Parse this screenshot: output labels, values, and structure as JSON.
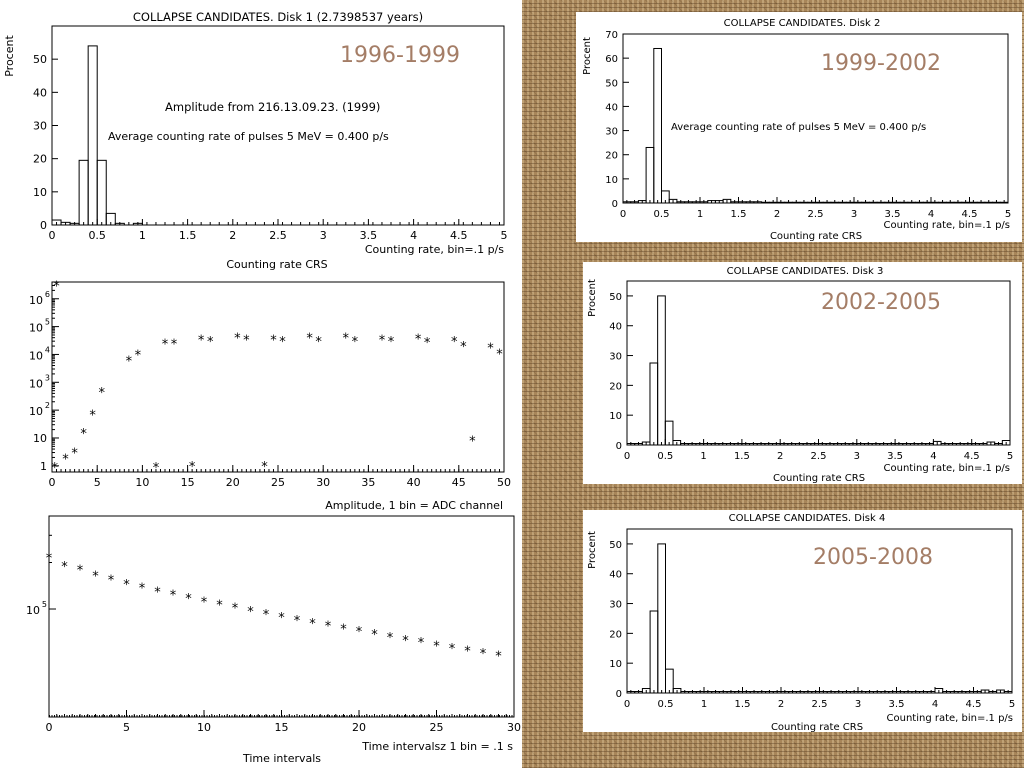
{
  "chart_data": [
    {
      "id": "disk1",
      "type": "bar",
      "title": "COLLAPSE CANDIDATES. Disk 1 (2.7398537 years)",
      "period_label": "1996-1999",
      "ylabel": "Procent",
      "xlabel": "Counting rate, bin=.1 p/s",
      "xlabel2": "Counting rate CRS",
      "annotations": [
        "Amplitude from  216.13.09.23. (1999)",
        "Average counting rate of pulses  5 MeV = 0.400 p/s"
      ],
      "xlim": [
        0,
        5
      ],
      "ylim": [
        0,
        60
      ],
      "xticks": [
        0,
        0.5,
        1,
        1.5,
        2,
        2.5,
        3,
        3.5,
        4,
        4.5,
        5
      ],
      "xtick_labels": [
        "0",
        "0.5",
        "1",
        "1.5",
        "2",
        "2.5",
        "3",
        "3.5",
        "4",
        "4.5",
        "5"
      ],
      "yticks": [
        0,
        10,
        20,
        30,
        40,
        50
      ],
      "bin_width": 0.1,
      "values": [
        1.5,
        0.8,
        0.5,
        19.5,
        54,
        19.5,
        3.5,
        0.5,
        0,
        0.5,
        0,
        0,
        0,
        0,
        0,
        0,
        0,
        0,
        0,
        0,
        0,
        0,
        0,
        0,
        0,
        0,
        0,
        0,
        0,
        0,
        0,
        0,
        0,
        0,
        0,
        0,
        0,
        0,
        0,
        0,
        0,
        0,
        0,
        0,
        0,
        0,
        0,
        0,
        0,
        0
      ]
    },
    {
      "id": "amplitude",
      "type": "scatter",
      "xlabel": "Amplitude, 1 bin = ADC channel",
      "xlim": [
        0,
        50
      ],
      "ylog": true,
      "ylim": [
        0.6,
        4000000
      ],
      "xticks": [
        0,
        5,
        10,
        15,
        20,
        25,
        30,
        35,
        40,
        45,
        50
      ],
      "xtick_labels": [
        "0",
        "5",
        "10",
        "15",
        "20",
        "25",
        "30",
        "35",
        "40",
        "45",
        "50"
      ],
      "yticks": [
        1,
        10,
        100,
        1000,
        10000,
        100000,
        1000000
      ],
      "ytick_base": [
        "1",
        "10",
        "10",
        "10",
        "10",
        "10",
        "10"
      ],
      "ytick_exp": [
        "",
        "",
        "2",
        "3",
        "4",
        "5",
        "6"
      ],
      "x": [
        0.5,
        1.5,
        2.5,
        3.5,
        4.5,
        5.5,
        8.5,
        9.5,
        12.5,
        13.5,
        16.5,
        17.5,
        20.5,
        21.5,
        24.5,
        25.5,
        28.5,
        29.5,
        32.5,
        33.5,
        36.5,
        37.5,
        40.5,
        41.5,
        44.5,
        45.5,
        46.5,
        48.5,
        49.5,
        0.3,
        11.5,
        15.5,
        23.5
      ],
      "y": [
        3000000,
        1.8,
        3,
        15,
        70,
        450,
        6000,
        10000,
        25000,
        25000,
        35000,
        30000,
        40000,
        35000,
        35000,
        30000,
        40000,
        30000,
        40000,
        30000,
        35000,
        30000,
        38000,
        28000,
        30000,
        20000,
        8,
        18000,
        11000,
        0.9,
        0.9,
        1,
        1
      ]
    },
    {
      "id": "time-intervals",
      "type": "scatter",
      "xlabel": "Time intervalsz 1 bin = .1 s",
      "xlabel2": "Time intervals",
      "xlim": [
        0,
        30
      ],
      "ylog": true,
      "ylim": [
        20000,
        400000
      ],
      "xticks": [
        0,
        5,
        10,
        15,
        20,
        25,
        30
      ],
      "xtick_labels": [
        "0",
        "5",
        "10",
        "15",
        "20",
        "25",
        "30"
      ],
      "yticks": [
        100000
      ],
      "ytick_base": [
        "10"
      ],
      "ytick_exp": [
        "5"
      ],
      "x": [
        0,
        1,
        2,
        3,
        4,
        5,
        6,
        7,
        8,
        9,
        10,
        11,
        12,
        13,
        14,
        15,
        16,
        17,
        18,
        19,
        20,
        21,
        22,
        23,
        24,
        25,
        26,
        27,
        28,
        29
      ],
      "y": [
        215000,
        190000,
        180000,
        165000,
        155000,
        145000,
        138000,
        130000,
        124000,
        118000,
        112000,
        107000,
        102000,
        97000,
        93000,
        89000,
        85000,
        81000,
        78000,
        75000,
        72000,
        69000,
        66000,
        63000,
        61000,
        58000,
        56000,
        54000,
        52000,
        50000
      ]
    },
    {
      "id": "disk2",
      "type": "bar",
      "title": "COLLAPSE CANDIDATES. Disk 2",
      "period_label": "1999-2002",
      "ylabel": "Procent",
      "xlabel": "Counting rate, bin=.1 p/s",
      "xlabel2": "Counting rate CRS",
      "annotations": [
        "Average counting rate of pulses  5 MeV = 0.400 p/s"
      ],
      "xlim": [
        0,
        5
      ],
      "ylim": [
        0,
        70
      ],
      "xticks": [
        0,
        0.5,
        1,
        1.5,
        2,
        2.5,
        3,
        3.5,
        4,
        4.5,
        5
      ],
      "xtick_labels": [
        "0",
        "0.5",
        "1",
        "1.5",
        "2",
        "2.5",
        "3",
        "3.5",
        "4",
        "4.5",
        "5"
      ],
      "yticks": [
        0,
        10,
        20,
        30,
        40,
        50,
        60,
        70
      ],
      "bin_width": 0.1,
      "values": [
        0.5,
        0.5,
        1,
        23,
        64,
        5,
        1.5,
        0.5,
        0.5,
        0.5,
        0.5,
        1,
        1,
        1.5,
        0.5,
        0.5,
        0.5,
        0.5,
        0.3,
        0.3,
        0.3,
        0.3,
        0.3,
        0.3,
        0.3,
        0.3,
        0.3,
        0.3,
        0.3,
        0.3,
        0.3,
        0.3,
        0.3,
        0.3,
        0.3,
        0.3,
        0.3,
        0.3,
        0.3,
        0.3,
        0.3,
        0.3,
        0.3,
        0.3,
        0.3,
        0.3,
        0.3,
        0.3,
        0.3,
        0.3
      ]
    },
    {
      "id": "disk3",
      "type": "bar",
      "title": "COLLAPSE CANDIDATES. Disk 3",
      "period_label": "2002-2005",
      "ylabel": "Procent",
      "xlabel": "Counting rate, bin=.1 p/s",
      "xlabel2": "Counting rate CRS",
      "xlim": [
        0,
        5
      ],
      "ylim": [
        0,
        55
      ],
      "xticks": [
        0,
        0.5,
        1,
        1.5,
        2,
        2.5,
        3,
        3.5,
        4,
        4.5,
        5
      ],
      "xtick_labels": [
        "0",
        "0.5",
        "1",
        "1.5",
        "2",
        "2.5",
        "3",
        "3.5",
        "4",
        "4.5",
        "5"
      ],
      "yticks": [
        0,
        10,
        20,
        30,
        40,
        50
      ],
      "bin_width": 0.1,
      "values": [
        0.5,
        0.5,
        1,
        27.5,
        50,
        8,
        1.5,
        0.5,
        0.5,
        0.5,
        0.5,
        0.5,
        0.5,
        0.5,
        0.5,
        0.5,
        0.5,
        0.5,
        0.5,
        0.5,
        0.5,
        0.5,
        0.5,
        0.5,
        0.5,
        0.5,
        0.5,
        0.5,
        0.5,
        0.5,
        0.5,
        0.5,
        0.5,
        0.5,
        0.5,
        0.5,
        0.5,
        0.5,
        0.5,
        0.5,
        1.2,
        0.5,
        0.5,
        0.5,
        0.5,
        0.5,
        0.5,
        1,
        0.5,
        1.5
      ]
    },
    {
      "id": "disk4",
      "type": "bar",
      "title": "COLLAPSE CANDIDATES. Disk 4",
      "period_label": "2005-2008",
      "ylabel": "Procent",
      "xlabel": "Counting rate, bin=.1 p/s",
      "xlabel2": "Counting rate CRS",
      "xlim": [
        0,
        5
      ],
      "ylim": [
        0,
        55
      ],
      "xticks": [
        0,
        0.5,
        1,
        1.5,
        2,
        2.5,
        3,
        3.5,
        4,
        4.5,
        5
      ],
      "xtick_labels": [
        "0",
        "0.5",
        "1",
        "1.5",
        "2",
        "2.5",
        "3",
        "3.5",
        "4",
        "4.5",
        "5"
      ],
      "yticks": [
        0,
        10,
        20,
        30,
        40,
        50
      ],
      "bin_width": 0.1,
      "values": [
        0.5,
        0.5,
        1.5,
        27.5,
        50,
        8,
        1.5,
        0.5,
        0.5,
        0.5,
        0.5,
        0.5,
        0.5,
        0.5,
        0.5,
        0.5,
        0.5,
        0.5,
        0.5,
        0.5,
        0.5,
        0.5,
        0.5,
        0.5,
        0.5,
        0.5,
        0.5,
        0.5,
        0.5,
        0.5,
        0.5,
        0.5,
        0.5,
        0.5,
        0.5,
        0.5,
        0.5,
        0.5,
        0.5,
        0.5,
        1.5,
        0.5,
        0.5,
        0.5,
        0.5,
        0.5,
        1,
        0.5,
        1,
        0.5
      ]
    }
  ],
  "colors": {
    "axis": "#000000",
    "period_label": "#a47d66",
    "background_texture": "#a8865a"
  }
}
